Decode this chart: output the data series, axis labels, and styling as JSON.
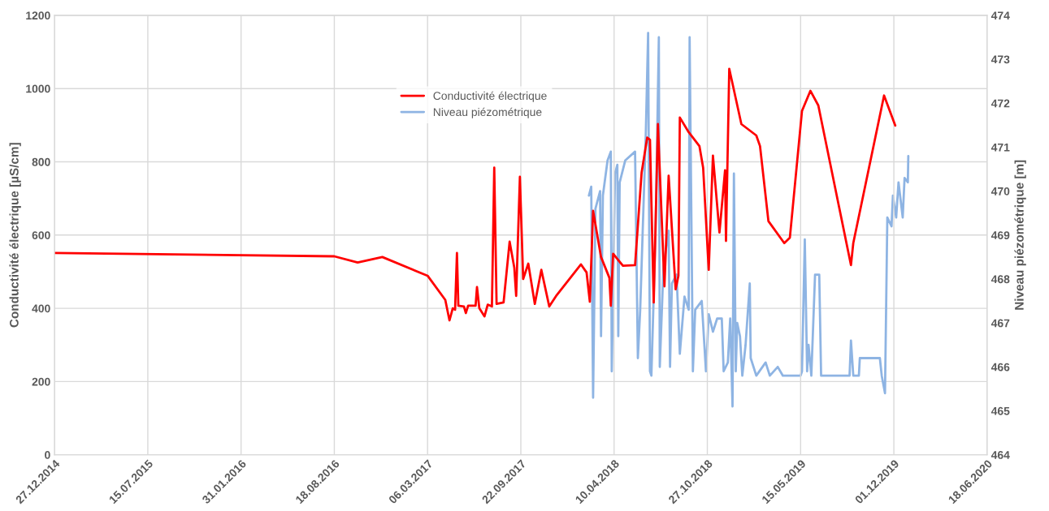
{
  "chart_data": {
    "type": "line",
    "xlim": [
      "2014-12-27",
      "2020-06-18"
    ],
    "xticks": [
      {
        "value": "2014-12-27",
        "label": "27.12.2014"
      },
      {
        "value": "2015-07-15",
        "label": "15.07.2015"
      },
      {
        "value": "2016-01-31",
        "label": "31.01.2016"
      },
      {
        "value": "2016-08-18",
        "label": "18.08.2016"
      },
      {
        "value": "2017-03-06",
        "label": "06.03.2017"
      },
      {
        "value": "2017-09-22",
        "label": "22.09.2017"
      },
      {
        "value": "2018-04-10",
        "label": "10.04.2018"
      },
      {
        "value": "2018-10-27",
        "label": "27.10.2018"
      },
      {
        "value": "2019-05-15",
        "label": "15.05.2019"
      },
      {
        "value": "2019-12-01",
        "label": "01.12.2019"
      },
      {
        "value": "2020-06-18",
        "label": "18.06.2020"
      }
    ],
    "ylabel": "Conductivité électrique [µS/cm]",
    "y2label": "Niveau piézométrique [m]",
    "ylim": [
      0,
      1200
    ],
    "yticks": [
      0,
      200,
      400,
      600,
      800,
      1000,
      1200
    ],
    "y2lim": [
      464,
      474
    ],
    "y2ticks": [
      464,
      465,
      466,
      467,
      468,
      469,
      470,
      471,
      472,
      473,
      474
    ],
    "grid": true,
    "legend": "top",
    "series": [
      {
        "name": "Conductivité électrique",
        "color": "#ff0000",
        "x": [
          "2014-12-27",
          "2016-08-18",
          "2016-10-07",
          "2016-11-29",
          "2017-03-06",
          "2017-04-13",
          "2017-04-22",
          "2017-04-29",
          "2017-05-04",
          "2017-05-08",
          "2017-05-11",
          "2017-05-23",
          "2017-05-27",
          "2017-06-01",
          "2017-06-17",
          "2017-06-20",
          "2017-06-25",
          "2017-07-06",
          "2017-07-13",
          "2017-07-22",
          "2017-07-27",
          "2017-08-01",
          "2017-08-16",
          "2017-08-29",
          "2017-09-08",
          "2017-09-12",
          "2017-09-20",
          "2017-09-27",
          "2017-10-08",
          "2017-10-22",
          "2017-11-05",
          "2017-11-22",
          "2017-12-08",
          "2018-01-29",
          "2018-02-10",
          "2018-02-17",
          "2018-02-24",
          "2018-03-13",
          "2018-03-31",
          "2018-04-03",
          "2018-04-08",
          "2018-04-29",
          "2018-05-25",
          "2018-06-08",
          "2018-06-20",
          "2018-06-26",
          "2018-07-04",
          "2018-07-13",
          "2018-07-27",
          "2018-08-05",
          "2018-08-20",
          "2018-08-26",
          "2018-08-29",
          "2018-09-17",
          "2018-10-10",
          "2018-10-18",
          "2018-10-30",
          "2018-11-08",
          "2018-11-22",
          "2018-12-04",
          "2018-12-06",
          "2018-12-13",
          "2019-01-08",
          "2019-02-09",
          "2019-02-17",
          "2019-03-07",
          "2019-04-10",
          "2019-04-22",
          "2019-05-18",
          "2019-06-05",
          "2019-06-22",
          "2019-08-31",
          "2019-09-05",
          "2019-11-10",
          "2019-12-04"
        ],
        "values": [
          551,
          542,
          525,
          540,
          489,
          423,
          367,
          400,
          396,
          551,
          407,
          405,
          387,
          407,
          407,
          458,
          400,
          378,
          410,
          405,
          784,
          412,
          416,
          582,
          511,
          434,
          759,
          480,
          522,
          412,
          505,
          405,
          436,
          520,
          498,
          418,
          666,
          540,
          483,
          407,
          549,
          516,
          518,
          770,
          866,
          860,
          416,
          903,
          460,
          762,
          452,
          489,
          921,
          881,
          843,
          784,
          505,
          817,
          607,
          777,
          584,
          1054,
          903,
          872,
          843,
          638,
          578,
          593,
          939,
          994,
          954,
          518,
          578,
          981,
          899
        ]
      },
      {
        "name": "Niveau piézométrique",
        "color": "#8eb4e3",
        "axis": "y2",
        "x": [
          "2018-02-15",
          "2018-02-20",
          "2018-02-24",
          "2018-03-01",
          "2018-03-11",
          "2018-03-13",
          "2018-03-17",
          "2018-03-27",
          "2018-04-03",
          "2018-04-05",
          "2018-04-12",
          "2018-04-17",
          "2018-04-19",
          "2018-04-22",
          "2018-05-04",
          "2018-05-25",
          "2018-05-31",
          "2018-06-05",
          "2018-06-17",
          "2018-06-22",
          "2018-06-26",
          "2018-06-29",
          "2018-07-08",
          "2018-07-15",
          "2018-07-17",
          "2018-07-25",
          "2018-08-05",
          "2018-08-08",
          "2018-08-12",
          "2018-08-22",
          "2018-08-29",
          "2018-09-08",
          "2018-09-17",
          "2018-09-19",
          "2018-09-26",
          "2018-10-01",
          "2018-10-15",
          "2018-10-24",
          "2018-10-30",
          "2018-11-08",
          "2018-11-17",
          "2018-11-27",
          "2018-12-01",
          "2018-12-10",
          "2018-12-15",
          "2018-12-20",
          "2018-12-23",
          "2018-12-27",
          "2018-12-30",
          "2019-01-05",
          "2019-01-10",
          "2019-01-17",
          "2019-01-26",
          "2019-01-28",
          "2019-02-09",
          "2019-03-01",
          "2019-03-10",
          "2019-03-27",
          "2019-04-07",
          "2019-05-15",
          "2019-05-18",
          "2019-05-24",
          "2019-05-29",
          "2019-06-01",
          "2019-06-07",
          "2019-06-15",
          "2019-06-24",
          "2019-06-28",
          "2019-08-28",
          "2019-08-31",
          "2019-09-05",
          "2019-09-17",
          "2019-09-19",
          "2019-11-01",
          "2019-11-05",
          "2019-11-12",
          "2019-11-17",
          "2019-11-26",
          "2019-11-29",
          "2019-12-06",
          "2019-12-11",
          "2019-12-20",
          "2019-12-24",
          "2019-12-31",
          "2020-01-01"
        ],
        "values": [
          469.9,
          470.1,
          465.3,
          469.6,
          470.0,
          466.7,
          469.9,
          470.7,
          470.9,
          465.9,
          470.4,
          470.6,
          466.7,
          470.2,
          470.7,
          470.9,
          466.2,
          467.3,
          471.3,
          473.6,
          465.9,
          465.8,
          469.1,
          473.5,
          466.0,
          468.3,
          469.1,
          466.0,
          467.9,
          468.1,
          466.3,
          467.6,
          467.3,
          473.5,
          465.9,
          467.3,
          467.5,
          465.9,
          467.2,
          466.8,
          467.1,
          467.1,
          465.9,
          466.1,
          467.1,
          465.1,
          470.4,
          465.9,
          467.0,
          466.7,
          465.8,
          466.5,
          467.9,
          466.2,
          465.8,
          466.1,
          465.8,
          466.0,
          465.8,
          465.8,
          465.9,
          468.9,
          465.9,
          466.5,
          465.8,
          468.1,
          468.1,
          465.8,
          465.8,
          466.6,
          465.8,
          465.8,
          466.2,
          466.2,
          465.8,
          465.4,
          469.4,
          469.2,
          469.9,
          469.4,
          470.2,
          469.4,
          470.3,
          470.2,
          470.8
        ]
      }
    ]
  }
}
